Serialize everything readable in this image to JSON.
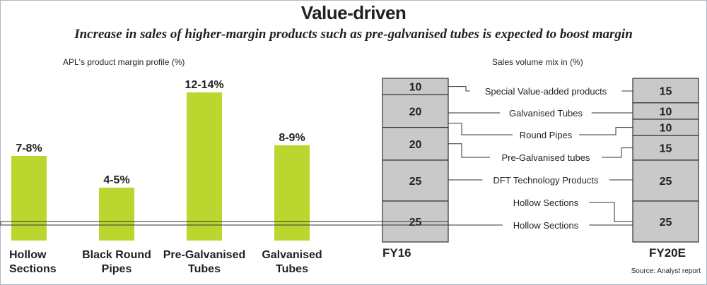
{
  "title": "Value-driven",
  "subtitle": "Increase in sales of higher-margin products such as pre-galvanised tubes is expected to boost margin",
  "source": "Source: Analyst report",
  "colors": {
    "bar": "#bcd630",
    "segment": "#c9c9c9",
    "segment_border": "#333333",
    "connector": "#333333"
  },
  "chart_data": [
    {
      "type": "bar",
      "title": "APL's product margin profile (%)",
      "categories": [
        [
          "Hollow",
          "Sections"
        ],
        [
          "Black Round",
          "Pipes"
        ],
        [
          "Pre-Galvanised",
          "Tubes"
        ],
        [
          "Galvanised",
          "Tubes"
        ]
      ],
      "ranges": [
        [
          7,
          8
        ],
        [
          4,
          5
        ],
        [
          12,
          14
        ],
        [
          8,
          9
        ]
      ],
      "labels": [
        "7-8%",
        "4-5%",
        "12-14%",
        "8-9%"
      ],
      "ylim": [
        0,
        16
      ]
    },
    {
      "type": "stacked-bar",
      "title": "Sales volume mix in (%)",
      "columns": [
        "FY16",
        "FY20E"
      ],
      "fy16": [
        {
          "label": "Special Value-added products",
          "value": 10
        },
        {
          "label": "Galvanised Tubes",
          "value": 20
        },
        {
          "label": "Pre-Galvanised tubes",
          "value": 20
        },
        {
          "label": "DFT Technology Products",
          "value": 25
        },
        {
          "label": "Hollow Sections",
          "value": 25
        }
      ],
      "fy20e": [
        {
          "label": "Special Value-added products",
          "value": 15
        },
        {
          "label": "Galvanised Tubes",
          "value": 10
        },
        {
          "label": "Round Pipes",
          "value": 10
        },
        {
          "label": "Pre-Galvanised tubes",
          "value": 15
        },
        {
          "label": "DFT Technology Products",
          "value": 25
        },
        {
          "label": "Hollow Sections",
          "value": 25
        }
      ],
      "middle_labels": [
        "Special Value-added products",
        "Galvanised Tubes",
        "Round Pipes",
        "Pre-Galvanised tubes",
        "DFT Technology Products",
        "Hollow Sections",
        "Hollow Sections"
      ]
    }
  ]
}
